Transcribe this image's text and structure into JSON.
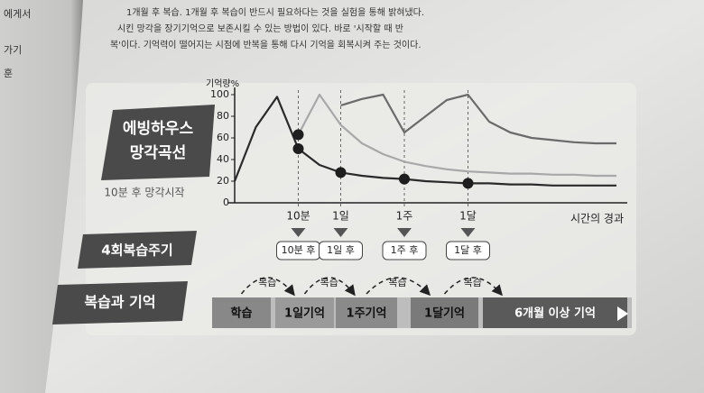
{
  "page_text": {
    "lines": [
      "1개월 후 복습. 1개월 후 복습이 반드시 필요하다는 것을 실험을 통해 밝혀냈다.",
      "시킨 망각을 장기기억으로 보존시킬 수 있는 방법이 있다. 바로 '시작할 때 반",
      "복'이다. 기억력이 떨어지는 시점에 반복을 통해 다시 기억을 회복시켜 주는 것이다."
    ],
    "left_fragments": [
      "에게서",
      "가기",
      "훈"
    ]
  },
  "chart_data": {
    "type": "line",
    "ylabel": "기억량%",
    "xlabel": "시간의 경과",
    "categories": [
      null,
      null,
      null,
      "10분",
      null,
      "1일",
      null,
      null,
      "1주",
      null,
      null,
      "1달",
      null,
      null,
      null,
      null,
      null,
      null,
      null
    ],
    "series": [
      {
        "color": "#2a2a2a",
        "values": [
          20,
          70,
          98,
          50,
          35,
          28,
          25,
          23,
          22,
          20,
          19,
          18,
          18,
          17,
          17,
          16,
          16,
          16,
          16
        ]
      },
      {
        "color": "#a8a8a8",
        "values": [
          null,
          null,
          null,
          63,
          100,
          72,
          55,
          45,
          38,
          34,
          31,
          29,
          28,
          27,
          27,
          26,
          26,
          25,
          25
        ]
      },
      {
        "color": "#6a6a6a",
        "values": [
          null,
          null,
          null,
          null,
          null,
          90,
          96,
          100,
          65,
          80,
          95,
          100,
          75,
          65,
          60,
          58,
          56,
          55,
          55
        ]
      }
    ],
    "ylim": [
      0,
      100
    ],
    "yticks": [
      0,
      20,
      40,
      60,
      80,
      100
    ]
  },
  "badges": {
    "title": [
      "에빙하우스",
      "망각곡선"
    ],
    "note": "10분 후 망각시작",
    "cycle": "4회복습주기",
    "memory": "복습과 기억"
  },
  "review_boxes": [
    "10분 후",
    "1일 후",
    "1주 후",
    "1달 후"
  ],
  "review_label": [
    "복습",
    "복습",
    "복습",
    "복습"
  ],
  "flow": [
    "학습",
    "1일기억",
    "1주기억",
    "1달기억",
    "6개월 이상 기억"
  ]
}
